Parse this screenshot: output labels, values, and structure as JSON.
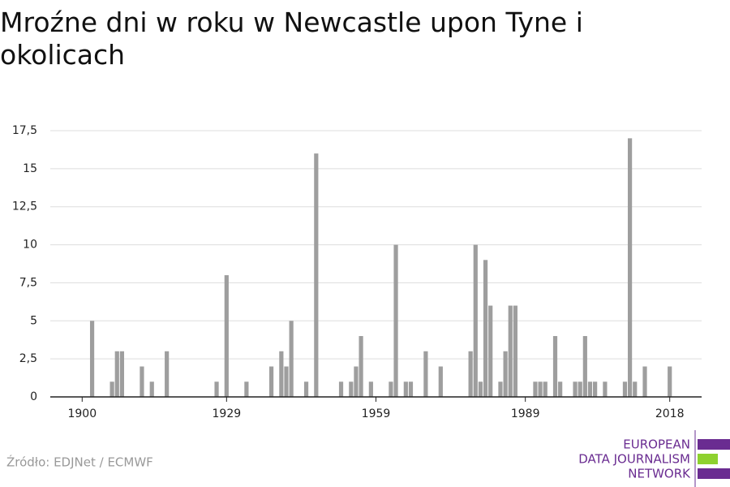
{
  "chart_data": {
    "type": "bar",
    "title": "Mroźne dni w roku w Newcastle upon Tyne i okolicach",
    "source": "Źródło: EDJNet / ECMWF",
    "logo": [
      "EUROPEAN",
      "DATA JOURNALISM",
      "NETWORK"
    ],
    "color": "#9e9e9e",
    "x": [
      1902,
      1906,
      1907,
      1908,
      1912,
      1914,
      1917,
      1927,
      1929,
      1933,
      1938,
      1940,
      1941,
      1942,
      1945,
      1947,
      1952,
      1954,
      1955,
      1956,
      1958,
      1962,
      1963,
      1965,
      1966,
      1969,
      1972,
      1978,
      1979,
      1980,
      1981,
      1982,
      1984,
      1985,
      1986,
      1987,
      1991,
      1992,
      1993,
      1995,
      1996,
      1999,
      2000,
      2001,
      2002,
      2003,
      2005,
      2009,
      2010,
      2011,
      2013,
      2018
    ],
    "values": [
      5,
      1,
      3,
      3,
      2,
      1,
      3,
      1,
      8,
      1,
      2,
      3,
      2,
      5,
      1,
      16,
      1,
      1,
      2,
      4,
      1,
      1,
      10,
      1,
      1,
      3,
      2,
      3,
      10,
      1,
      9,
      6,
      1,
      3,
      6,
      6,
      1,
      1,
      1,
      4,
      1,
      1,
      1,
      4,
      1,
      1,
      1,
      1,
      17,
      1,
      2,
      2
    ],
    "xlim": [
      1893.6,
      2024.4
    ],
    "xticks": [
      1900,
      1929,
      1959,
      1989,
      2018
    ],
    "ylim": [
      0,
      17.5
    ],
    "yticks": [
      0,
      {
        "value": 2.5,
        "label": "2,5"
      },
      5,
      {
        "value": 7.5,
        "label": "7,5"
      },
      10,
      {
        "value": 12.5,
        "label": "12,5"
      },
      15,
      {
        "value": 17.5,
        "label": "17,5"
      }
    ],
    "grid": true
  }
}
